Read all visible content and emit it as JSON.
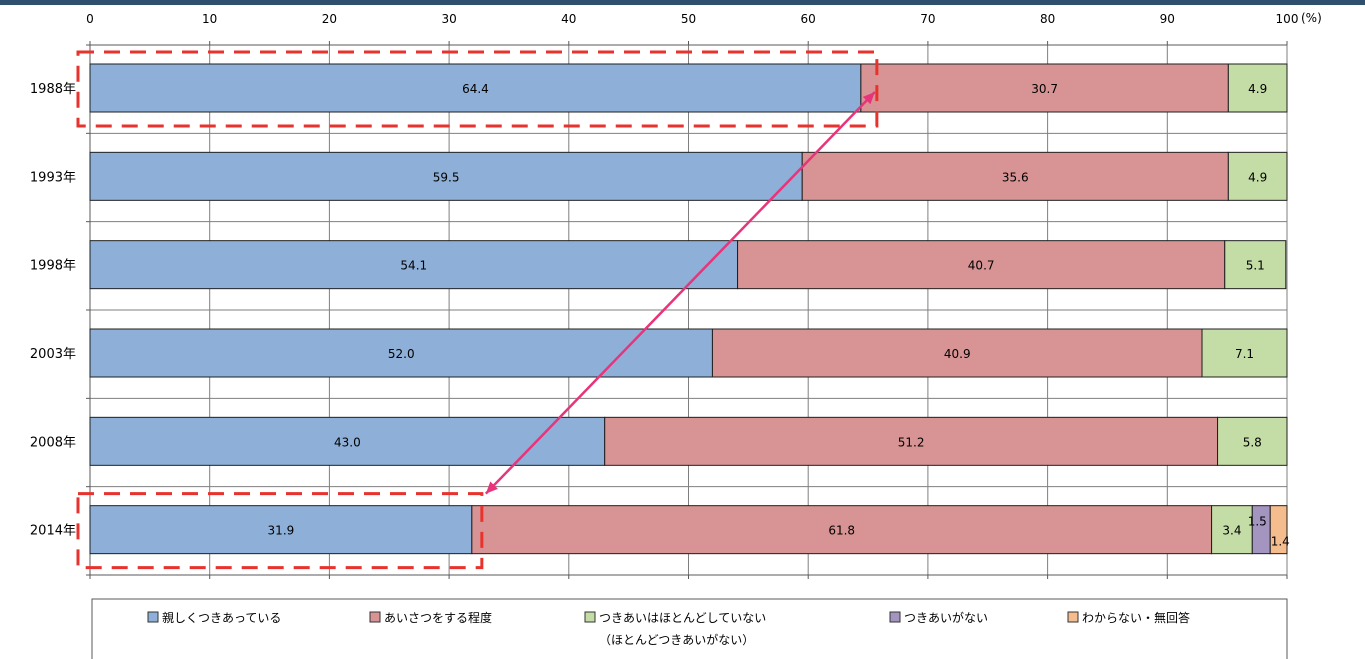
{
  "chart_data": {
    "type": "bar",
    "orientation": "horizontal",
    "stacked": true,
    "unit_label": "(%)",
    "xlim": [
      0,
      100
    ],
    "xticks": [
      0,
      10,
      20,
      30,
      40,
      50,
      60,
      70,
      80,
      90,
      100
    ],
    "grid": true,
    "legend_position": "bottom",
    "categories": [
      "1988年",
      "1993年",
      "1998年",
      "2003年",
      "2008年",
      "2014年"
    ],
    "series": [
      {
        "name": "親しくつきあっている",
        "color": "#8eb0d8",
        "values": [
          64.4,
          59.5,
          54.1,
          52.0,
          43.0,
          31.9
        ],
        "labels": [
          "64.4",
          "59.5",
          "54.1",
          "52.0",
          "43.0",
          "31.9"
        ]
      },
      {
        "name": "あいさつをする程度",
        "color": "#d89494",
        "values": [
          30.7,
          35.6,
          40.7,
          40.9,
          51.2,
          61.8
        ],
        "labels": [
          "30.7",
          "35.6",
          "40.7",
          "40.9",
          "51.2",
          "61.8"
        ]
      },
      {
        "name": "つきあいはほとんどしていない",
        "name_line2": "（ほとんどつきあいがない）",
        "color": "#c4dca6",
        "values": [
          4.9,
          4.9,
          5.1,
          7.1,
          5.8,
          3.4
        ],
        "labels": [
          "4.9",
          "4.9",
          "5.1",
          "7.1",
          "5.8",
          "3.4"
        ]
      },
      {
        "name": "つきあいがない",
        "color": "#a394c0",
        "values": [
          0,
          0,
          0,
          0,
          0,
          1.5
        ],
        "labels": [
          "",
          "",
          "",
          "",
          "",
          "1.5"
        ]
      },
      {
        "name": "わからない・無回答",
        "color": "#f5bc8e",
        "values": [
          0,
          0,
          0,
          0,
          0,
          1.4
        ],
        "labels": [
          "",
          "",
          "",
          "",
          "",
          "1.4"
        ]
      }
    ],
    "annotations": {
      "highlight_color": "#e8322d",
      "arrow_color": "#e8347a",
      "highlight_categories": [
        "1988年",
        "2014年"
      ],
      "arrow_from_value": 64.4,
      "arrow_to_value": 31.9
    }
  }
}
